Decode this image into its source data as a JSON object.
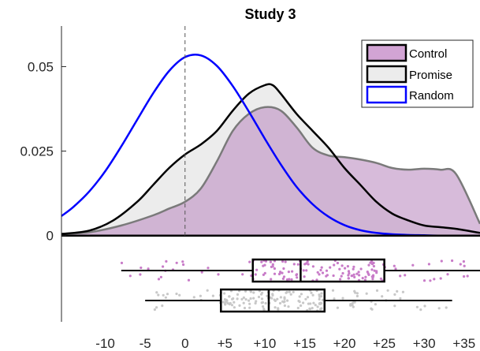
{
  "chart_data": {
    "type": "area",
    "title": "Study 3",
    "xlabel": "",
    "ylabel": "",
    "xlim": [
      -15.5,
      37
    ],
    "ylim": [
      -0.0255,
      0.062
    ],
    "x_ticks": [
      -10,
      -5,
      0,
      5,
      10,
      15,
      20,
      25,
      30,
      35
    ],
    "x_tick_labels": [
      "-10",
      "-5",
      "0",
      "+5",
      "+10",
      "+15",
      "+20",
      "+25",
      "+30",
      "+35"
    ],
    "y_ticks": [
      0,
      0.025,
      0.05
    ],
    "y_tick_labels": [
      "0",
      "0.025",
      "0.05"
    ],
    "reference_line_x": 0,
    "legend": {
      "position": "top-right",
      "entries": [
        "Control",
        "Promise",
        "Random"
      ]
    },
    "colors": {
      "control_fill": "#d2b4d4",
      "control_edge": "#7a7a7a",
      "promise_fill": "#ececec",
      "promise_edge": "#000000",
      "random": "#0000ff",
      "control_dots": "#c87bc8",
      "promise_dots": "#c8c8c8"
    },
    "series": [
      {
        "name": "Control",
        "x": [
          -15.5,
          -12,
          -8,
          -4,
          -2,
          0,
          2,
          4,
          6,
          8,
          10,
          12,
          14,
          16,
          18,
          20,
          22,
          24,
          26,
          28,
          30,
          32,
          34,
          37
        ],
        "y": [
          0.0005,
          0.001,
          0.003,
          0.006,
          0.008,
          0.01,
          0.014,
          0.022,
          0.031,
          0.036,
          0.038,
          0.037,
          0.032,
          0.026,
          0.0237,
          0.0232,
          0.0225,
          0.0215,
          0.02,
          0.0195,
          0.0198,
          0.0195,
          0.0182,
          0.0035
        ]
      },
      {
        "name": "Promise",
        "x": [
          -15.5,
          -12,
          -9,
          -6,
          -4,
          -2,
          0,
          2,
          4,
          6,
          8,
          10,
          11,
          12,
          14,
          16,
          18,
          20,
          22,
          24,
          26,
          28,
          30,
          32,
          34,
          37
        ],
        "y": [
          0.0005,
          0.0015,
          0.0045,
          0.01,
          0.015,
          0.02,
          0.024,
          0.027,
          0.031,
          0.037,
          0.042,
          0.0445,
          0.0445,
          0.042,
          0.036,
          0.031,
          0.026,
          0.02,
          0.015,
          0.01,
          0.0065,
          0.0045,
          0.003,
          0.0025,
          0.002,
          0.0008
        ]
      },
      {
        "name": "Random",
        "x": [
          -15.5,
          -14,
          -12,
          -10,
          -8,
          -6,
          -4,
          -2,
          0,
          2,
          4,
          6,
          8,
          10,
          12,
          14,
          16,
          18,
          20,
          22,
          24,
          26,
          28,
          30,
          32,
          34,
          37
        ],
        "y": [
          0.0058,
          0.0085,
          0.0131,
          0.0191,
          0.0264,
          0.0343,
          0.0421,
          0.0487,
          0.0528,
          0.0533,
          0.0502,
          0.0442,
          0.0367,
          0.0287,
          0.0211,
          0.0144,
          0.0093,
          0.0056,
          0.0031,
          0.0016,
          0.0008,
          0.0004,
          0.0002,
          0.0001,
          0.0,
          0.0,
          0.0
        ]
      }
    ],
    "boxplots": [
      {
        "name": "Control",
        "min": -8,
        "q1": 8.5,
        "median": 14.5,
        "q3": 25,
        "max": 37
      },
      {
        "name": "Promise",
        "min": -5,
        "q1": 4.5,
        "median": 10.5,
        "q3": 17.5,
        "max": 33.5
      }
    ]
  }
}
